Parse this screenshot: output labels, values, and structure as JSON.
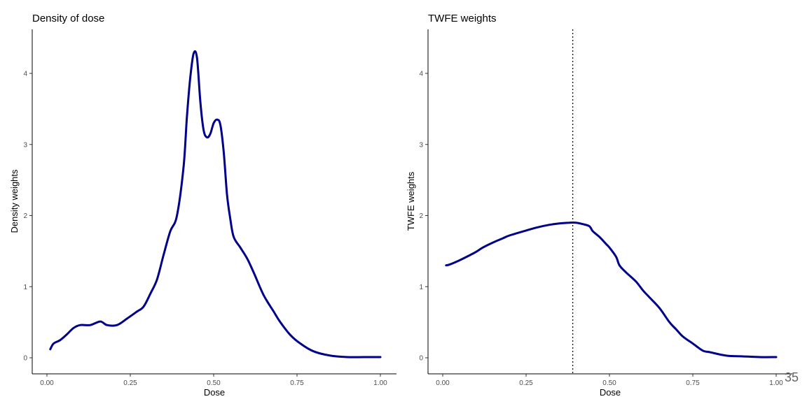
{
  "page_number": "35",
  "chart_data": [
    {
      "type": "line",
      "title": "Density of dose",
      "xlabel": "Dose",
      "ylabel": "Density weights",
      "xlim": [
        0,
        1
      ],
      "ylim": [
        0,
        4.3
      ],
      "x_ticks": [
        0,
        0.25,
        0.5,
        0.75,
        1
      ],
      "x_tick_labels": [
        "0.00",
        "0.25",
        "0.50",
        "0.75",
        "1.00"
      ],
      "y_ticks": [
        0,
        1,
        2,
        3,
        4
      ],
      "y_tick_labels": [
        "0",
        "1",
        "2",
        "3",
        "4"
      ],
      "grid": false,
      "series_color": "#00008b",
      "series": [
        {
          "x": [
            0.01,
            0.02,
            0.04,
            0.06,
            0.08,
            0.1,
            0.13,
            0.16,
            0.18,
            0.21,
            0.24,
            0.27,
            0.29,
            0.31,
            0.33,
            0.35,
            0.37,
            0.39,
            0.41,
            0.42,
            0.43,
            0.44,
            0.45,
            0.46,
            0.47,
            0.48,
            0.49,
            0.5,
            0.51,
            0.52,
            0.53,
            0.54,
            0.55,
            0.56,
            0.58,
            0.6,
            0.62,
            0.65,
            0.68,
            0.7,
            0.73,
            0.76,
            0.8,
            0.85,
            0.9,
            0.95,
            1.0
          ],
          "y": [
            0.12,
            0.2,
            0.25,
            0.33,
            0.42,
            0.46,
            0.46,
            0.51,
            0.46,
            0.46,
            0.55,
            0.65,
            0.72,
            0.9,
            1.1,
            1.45,
            1.78,
            2.0,
            2.7,
            3.4,
            3.95,
            4.28,
            4.22,
            3.6,
            3.2,
            3.1,
            3.15,
            3.3,
            3.35,
            3.28,
            2.9,
            2.3,
            1.95,
            1.7,
            1.55,
            1.4,
            1.2,
            0.88,
            0.65,
            0.5,
            0.32,
            0.2,
            0.09,
            0.03,
            0.01,
            0.01,
            0.01
          ]
        }
      ]
    },
    {
      "type": "line",
      "title": "TWFE weights",
      "xlabel": "Dose",
      "ylabel": "TWFE weights",
      "xlim": [
        0,
        1
      ],
      "ylim": [
        0,
        4.3
      ],
      "x_ticks": [
        0,
        0.25,
        0.5,
        0.75,
        1
      ],
      "x_tick_labels": [
        "0.00",
        "0.25",
        "0.50",
        "0.75",
        "1.00"
      ],
      "y_ticks": [
        0,
        1,
        2,
        3,
        4
      ],
      "y_tick_labels": [
        "0",
        "1",
        "2",
        "3",
        "4"
      ],
      "grid": false,
      "series_color": "#00008b",
      "reference_line": {
        "orientation": "vertical",
        "x": 0.39,
        "style": "dotted",
        "color": "#000000"
      },
      "series": [
        {
          "x": [
            0.01,
            0.02,
            0.05,
            0.08,
            0.1,
            0.12,
            0.15,
            0.18,
            0.2,
            0.25,
            0.28,
            0.32,
            0.35,
            0.38,
            0.4,
            0.42,
            0.44,
            0.45,
            0.47,
            0.49,
            0.5,
            0.52,
            0.53,
            0.55,
            0.58,
            0.6,
            0.62,
            0.65,
            0.68,
            0.7,
            0.72,
            0.75,
            0.78,
            0.8,
            0.85,
            0.9,
            0.95,
            1.0
          ],
          "y": [
            1.3,
            1.31,
            1.37,
            1.44,
            1.49,
            1.55,
            1.62,
            1.68,
            1.72,
            1.79,
            1.83,
            1.87,
            1.89,
            1.9,
            1.9,
            1.88,
            1.85,
            1.78,
            1.7,
            1.6,
            1.55,
            1.42,
            1.3,
            1.2,
            1.07,
            0.95,
            0.85,
            0.7,
            0.5,
            0.4,
            0.3,
            0.2,
            0.1,
            0.08,
            0.03,
            0.02,
            0.01,
            0.01
          ]
        }
      ]
    }
  ]
}
